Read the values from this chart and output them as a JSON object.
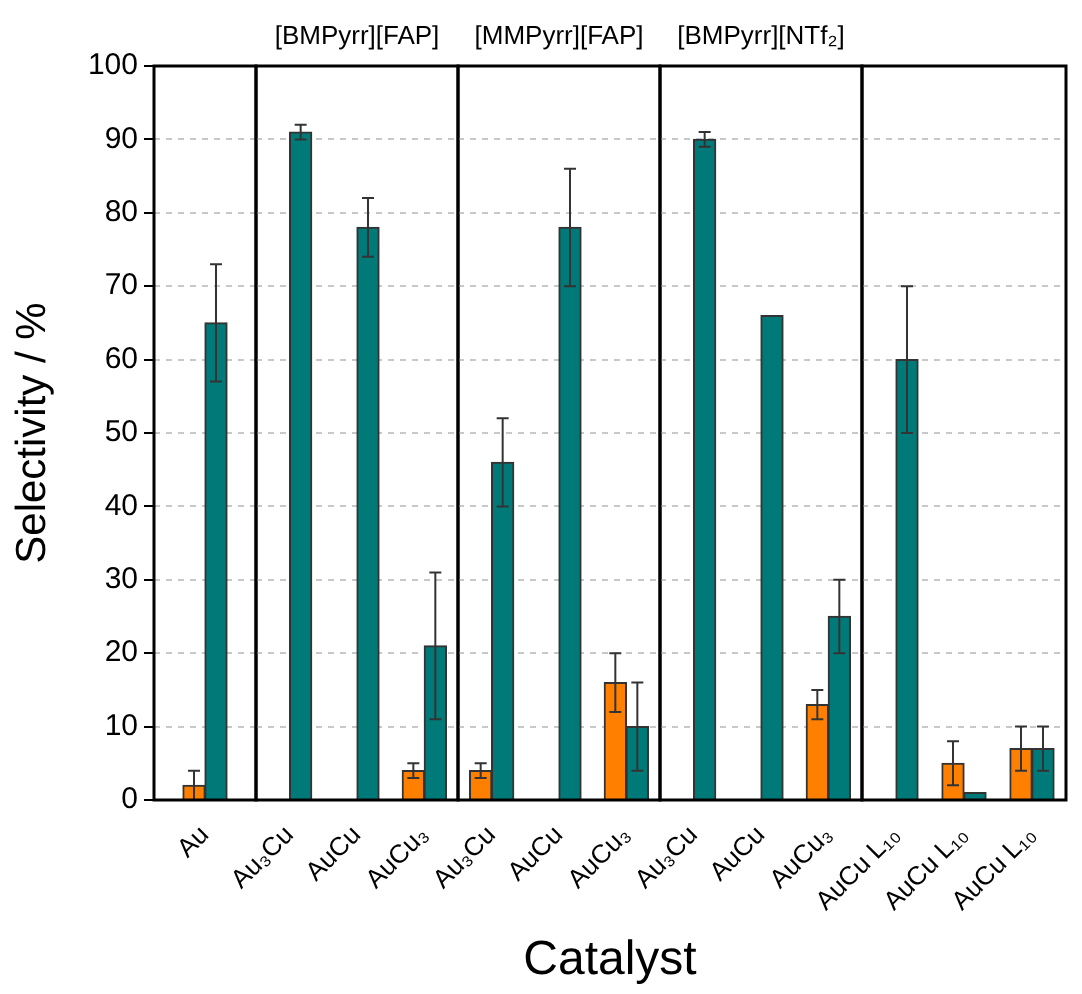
{
  "chart_data": [
    {
      "type": "bar",
      "ylabel": "Selectivity / %",
      "categories": [
        "Au"
      ],
      "series": [
        {
          "color": "#ff8000",
          "values": [
            2
          ],
          "errors": [
            2
          ]
        },
        {
          "color": "#007a78",
          "values": [
            65
          ],
          "errors": [
            8
          ]
        }
      ],
      "ylim": [
        0,
        100
      ],
      "yticks": [
        0,
        10,
        20,
        30,
        40,
        50,
        60,
        70,
        80,
        90,
        100
      ],
      "grid": "y",
      "legend": false
    },
    {
      "type": "bar",
      "title": "[BMPyrr][FAP]",
      "categories": [
        "Au₃Cu",
        "AuCu",
        "AuCu₃"
      ],
      "series": [
        {
          "color": "#ff8000",
          "values": [
            null,
            null,
            4
          ],
          "errors": [
            null,
            null,
            1
          ]
        },
        {
          "color": "#007a78",
          "values": [
            91,
            78,
            21
          ],
          "errors": [
            1,
            4,
            10
          ]
        }
      ],
      "ylim": [
        0,
        100
      ],
      "yticks": [
        0,
        10,
        20,
        30,
        40,
        50,
        60,
        70,
        80,
        90,
        100
      ],
      "grid": "y",
      "legend": false,
      "tick_labels": "x"
    },
    {
      "type": "bar",
      "title": "[MMPyrr][FAP]",
      "xlabel": "Catalyst",
      "categories": [
        "Au₃Cu",
        "AuCu",
        "AuCu₃"
      ],
      "series": [
        {
          "color": "#ff8000",
          "values": [
            4,
            null,
            16
          ],
          "errors": [
            1,
            null,
            4
          ]
        },
        {
          "color": "#007a78",
          "values": [
            46,
            78,
            10
          ],
          "errors": [
            6,
            8,
            6
          ]
        }
      ],
      "ylim": [
        0,
        100
      ],
      "yticks": [
        0,
        10,
        20,
        30,
        40,
        50,
        60,
        70,
        80,
        90,
        100
      ],
      "grid": "y",
      "legend": false,
      "tick_labels": "x"
    },
    {
      "type": "bar",
      "title": "[BMPyrr][NTf₂]",
      "categories": [
        "Au₃Cu",
        "AuCu",
        "AuCu₃"
      ],
      "series": [
        {
          "color": "#ff8000",
          "values": [
            null,
            null,
            13
          ],
          "errors": [
            null,
            null,
            2
          ]
        },
        {
          "color": "#007a78",
          "values": [
            90,
            66,
            25
          ],
          "errors": [
            1,
            null,
            5
          ]
        }
      ],
      "ylim": [
        0,
        100
      ],
      "yticks": [
        0,
        10,
        20,
        30,
        40,
        50,
        60,
        70,
        80,
        90,
        100
      ],
      "grid": "y",
      "legend": false,
      "tick_labels": "x"
    },
    {
      "type": "bar",
      "categories": [
        "AuCu L₁₀",
        "AuCu L₁₀",
        "AuCu L₁₀"
      ],
      "series": [
        {
          "color": "#ff8000",
          "values": [
            null,
            5,
            7
          ],
          "errors": [
            null,
            3,
            3
          ]
        },
        {
          "color": "#007a78",
          "values": [
            60,
            1,
            7
          ],
          "errors": [
            10,
            null,
            3
          ]
        }
      ],
      "ylim": [
        0,
        100
      ],
      "yticks": [
        0,
        10,
        20,
        30,
        40,
        50,
        60,
        70,
        80,
        90,
        100
      ],
      "grid": "y",
      "legend": false,
      "tick_labels": "x"
    }
  ]
}
